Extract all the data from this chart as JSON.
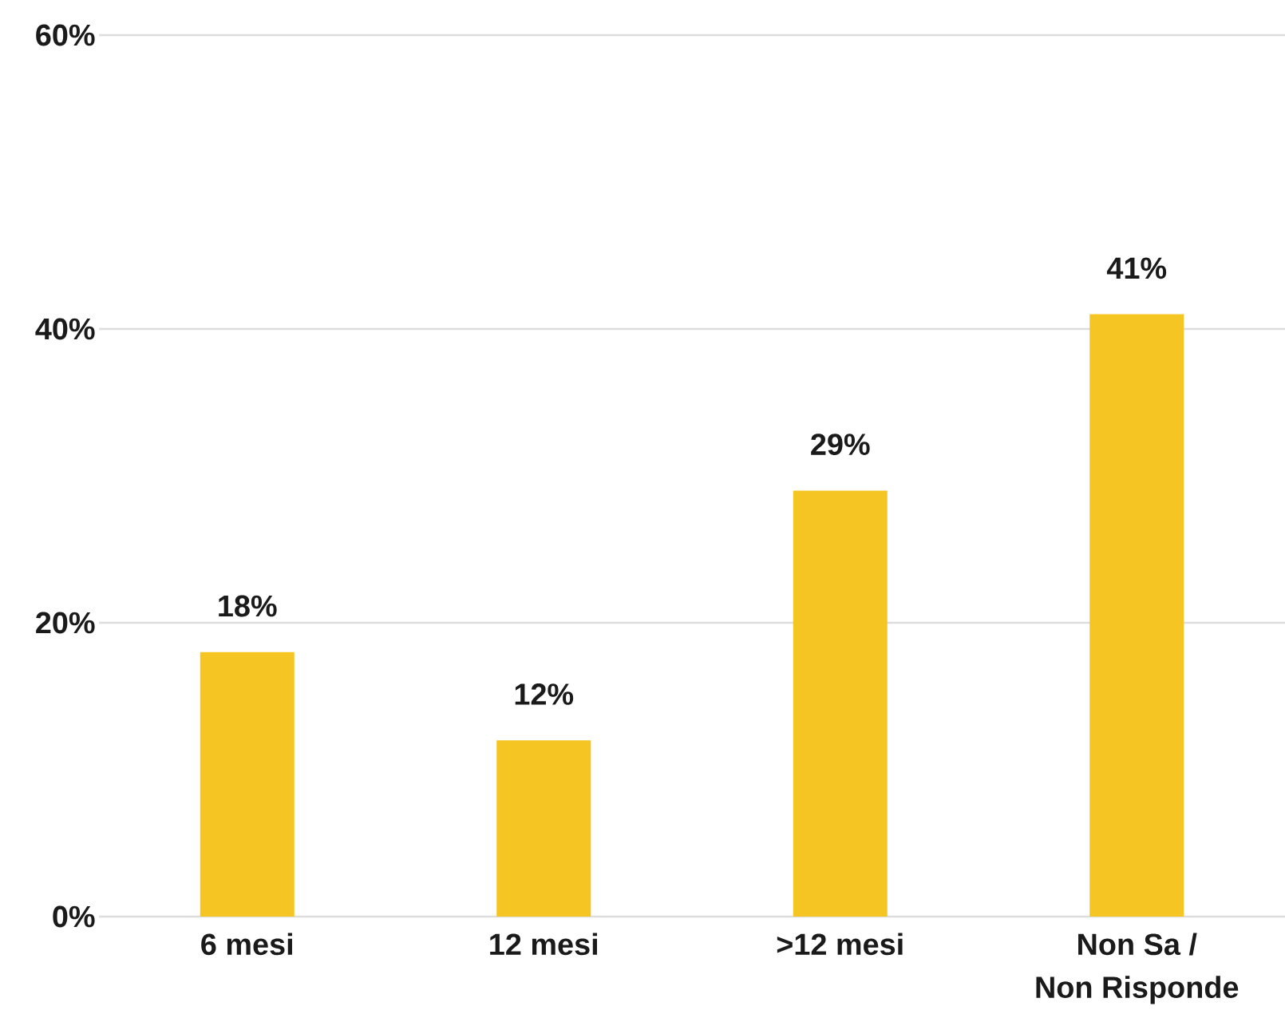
{
  "chart_data": {
    "type": "bar",
    "categories": [
      "6 mesi",
      "12 mesi",
      ">12 mesi",
      "Non Sa /\nNon Risponde"
    ],
    "values": [
      18,
      12,
      29,
      41
    ],
    "value_labels": [
      "18%",
      "12%",
      "29%",
      "41%"
    ],
    "color": "#f5c523",
    "ylim": [
      0,
      60
    ],
    "yticks": [
      {
        "value": 0,
        "label": "0%"
      },
      {
        "value": 20,
        "label": "20%"
      },
      {
        "value": 40,
        "label": "40%"
      },
      {
        "value": 60,
        "label": "60%"
      }
    ],
    "grid": "y"
  }
}
